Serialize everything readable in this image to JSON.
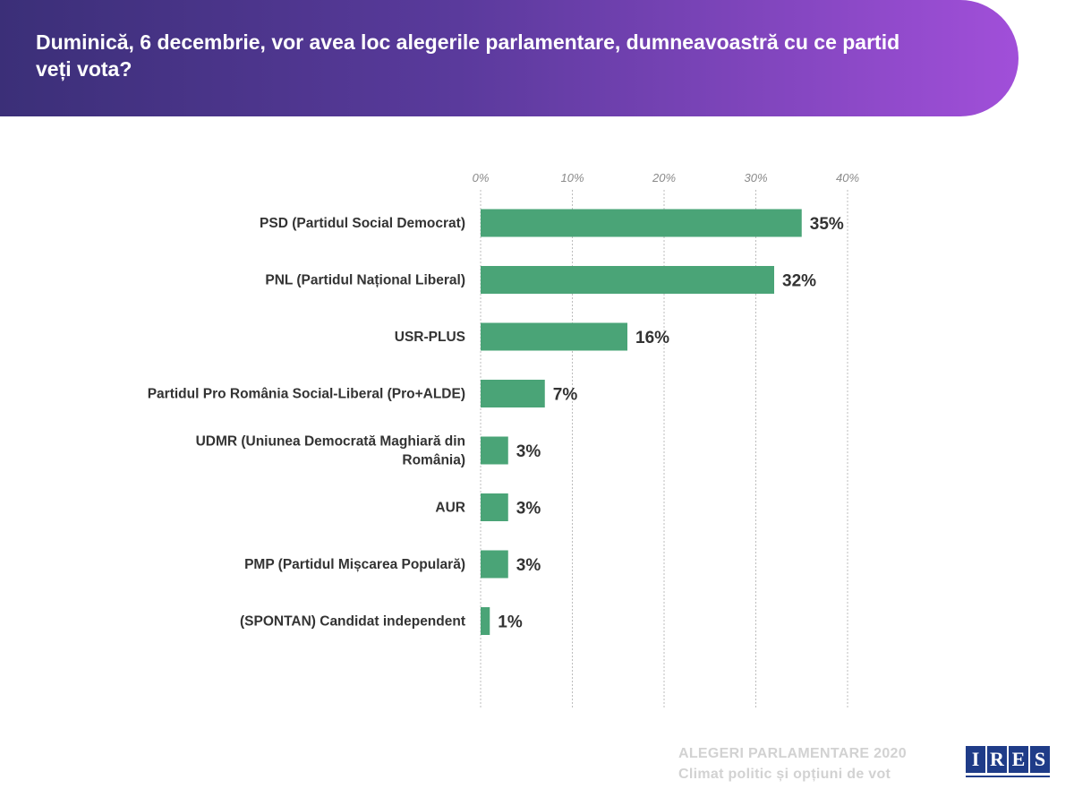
{
  "header": {
    "title": "Duminică, 6 decembrie, vor avea loc alegerile parlamentare, dumneavoastră cu ce partid veți vota?"
  },
  "chart_data": {
    "type": "bar",
    "orientation": "horizontal",
    "title": "",
    "xlim": [
      0,
      40
    ],
    "ticks": [
      "0%",
      "10%",
      "20%",
      "30%",
      "40%"
    ],
    "tick_values": [
      0,
      10,
      20,
      30,
      40
    ],
    "axis_position": "top",
    "grid": true,
    "bar_color": "#4aa477",
    "categories": [
      [
        "PSD (Partidul Social Democrat)"
      ],
      [
        "PNL (Partidul Național Liberal)"
      ],
      [
        "USR-PLUS"
      ],
      [
        "Partidul Pro România Social-Liberal (Pro+ALDE)"
      ],
      [
        "UDMR (Uniunea Democrată Maghiară din",
        "România)"
      ],
      [
        "AUR"
      ],
      [
        "PMP (Partidul Mișcarea Populară)"
      ],
      [
        "(SPONTAN) Candidat independent"
      ]
    ],
    "values": [
      35,
      32,
      16,
      7,
      3,
      3,
      3,
      1
    ],
    "value_labels": [
      "35%",
      "32%",
      "16%",
      "7%",
      "3%",
      "3%",
      "3%",
      "1%"
    ]
  },
  "footer": {
    "line1": "ALEGERI PARLAMENTARE 2020",
    "line2": "Climat politic și opțiuni de vot"
  },
  "logo": {
    "letters": [
      "I",
      "R",
      "E",
      "S"
    ],
    "color": "#1f3c88"
  }
}
